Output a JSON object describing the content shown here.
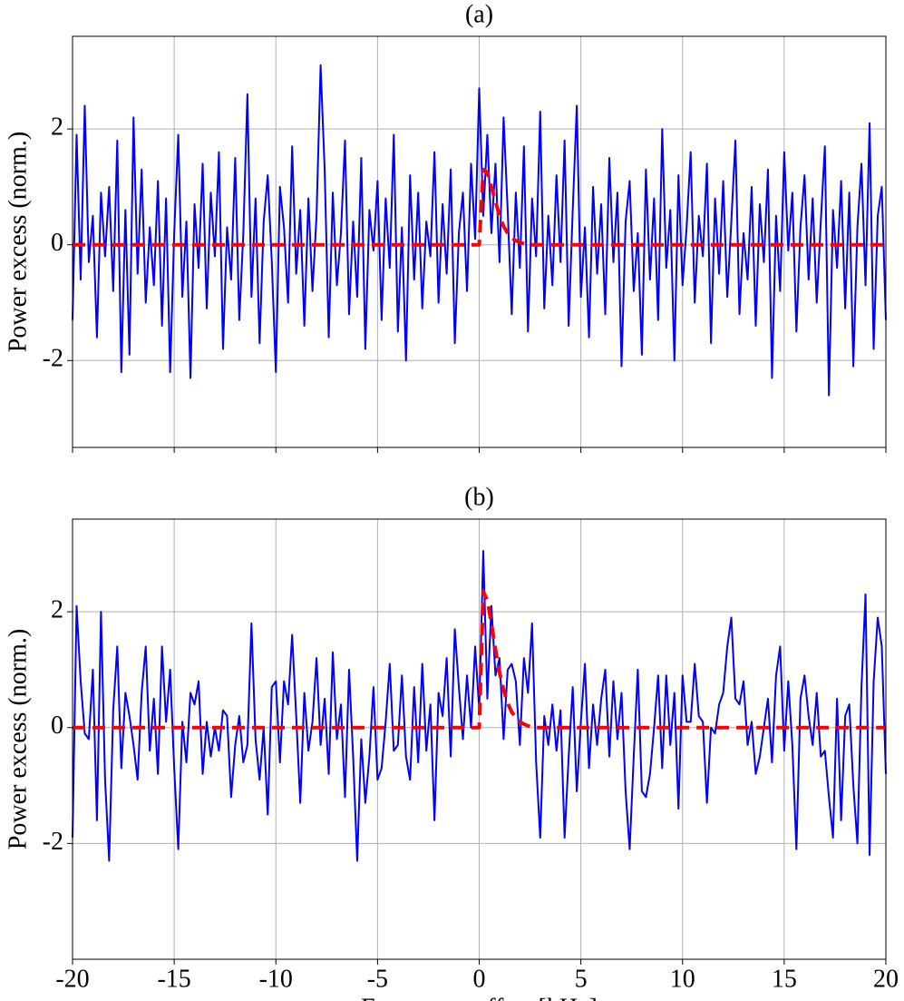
{
  "chart_data": [
    {
      "type": "line",
      "title": "(a)",
      "ylabel": "Power excess (norm.)",
      "show_xticklabels": false,
      "grid": true,
      "xlim": [
        -20,
        20
      ],
      "xticks": [
        -20,
        -15,
        -10,
        -5,
        0,
        5,
        10,
        15,
        20
      ],
      "ylim": [
        -3.5,
        3.6
      ],
      "yticks": [
        -2,
        0,
        2
      ],
      "x": [
        -20,
        -19.8,
        -19.6,
        -19.4,
        -19.2,
        -19,
        -18.8,
        -18.6,
        -18.4,
        -18.2,
        -18,
        -17.8,
        -17.6,
        -17.4,
        -17.2,
        -17,
        -16.8,
        -16.6,
        -16.4,
        -16.2,
        -16,
        -15.8,
        -15.6,
        -15.4,
        -15.2,
        -15,
        -14.8,
        -14.6,
        -14.4,
        -14.2,
        -14,
        -13.8,
        -13.6,
        -13.4,
        -13.2,
        -13,
        -12.8,
        -12.6,
        -12.4,
        -12.2,
        -12,
        -11.8,
        -11.6,
        -11.4,
        -11.2,
        -11,
        -10.8,
        -10.6,
        -10.4,
        -10.2,
        -10,
        -9.8,
        -9.6,
        -9.4,
        -9.2,
        -9,
        -8.8,
        -8.6,
        -8.4,
        -8.2,
        -8,
        -7.8,
        -7.6,
        -7.4,
        -7.2,
        -7,
        -6.8,
        -6.6,
        -6.4,
        -6.2,
        -6,
        -5.8,
        -5.6,
        -5.4,
        -5.2,
        -5,
        -4.8,
        -4.6,
        -4.4,
        -4.2,
        -4,
        -3.8,
        -3.6,
        -3.4,
        -3.2,
        -3,
        -2.8,
        -2.6,
        -2.4,
        -2.2,
        -2,
        -1.8,
        -1.6,
        -1.4,
        -1.2,
        -1,
        -0.8,
        -0.6,
        -0.4,
        -0.2,
        0,
        0.2,
        0.4,
        0.6,
        0.8,
        1,
        1.2,
        1.4,
        1.6,
        1.8,
        2,
        2.2,
        2.4,
        2.6,
        2.8,
        3,
        3.2,
        3.4,
        3.6,
        3.8,
        4,
        4.2,
        4.4,
        4.6,
        4.8,
        5,
        5.2,
        5.4,
        5.6,
        5.8,
        6,
        6.2,
        6.4,
        6.6,
        6.8,
        7,
        7.2,
        7.4,
        7.6,
        7.8,
        8,
        8.2,
        8.4,
        8.6,
        8.8,
        9,
        9.2,
        9.4,
        9.6,
        9.8,
        10,
        10.2,
        10.4,
        10.6,
        10.8,
        11,
        11.2,
        11.4,
        11.6,
        11.8,
        12,
        12.2,
        12.4,
        12.6,
        12.8,
        13,
        13.2,
        13.4,
        13.6,
        13.8,
        14,
        14.2,
        14.4,
        14.6,
        14.8,
        15,
        15.2,
        15.4,
        15.6,
        15.8,
        16,
        16.2,
        16.4,
        16.6,
        16.8,
        17,
        17.2,
        17.4,
        17.6,
        17.8,
        18,
        18.2,
        18.4,
        18.6,
        18.8,
        19,
        19.2,
        19.4,
        19.6,
        19.8,
        20
      ],
      "series": [
        {
          "color": "#0000ff",
          "dash": false,
          "values": [
            -1.3,
            1.9,
            -0.6,
            2.4,
            -0.3,
            0.5,
            -1.6,
            0.9,
            -0.2,
            1.0,
            -0.8,
            1.8,
            -2.2,
            0.6,
            -1.9,
            2.2,
            -0.5,
            1.3,
            -1.0,
            0.3,
            -0.7,
            1.1,
            -1.4,
            0.8,
            -2.2,
            0.2,
            1.9,
            -0.9,
            0.4,
            -2.3,
            0.7,
            -0.4,
            1.4,
            -1.1,
            0.9,
            -0.2,
            1.6,
            -1.8,
            0.3,
            -0.6,
            1.5,
            -1.3,
            0.2,
            2.6,
            -0.9,
            0.8,
            -1.7,
            0.4,
            1.2,
            -0.3,
            -2.2,
            1.0,
            0.3,
            -1.0,
            1.7,
            -0.5,
            0.6,
            -1.4,
            0.8,
            -0.8,
            0.5,
            3.1,
            1.3,
            -1.6,
            0.9,
            -0.7,
            0.2,
            1.8,
            -1.2,
            0.4,
            -0.9,
            1.5,
            -1.8,
            0.6,
            -0.1,
            1.1,
            -1.3,
            0.8,
            -0.4,
            1.9,
            -1.5,
            0.3,
            -2.0,
            1.2,
            -0.6,
            0.9,
            -1.1,
            0.4,
            -0.2,
            1.6,
            -1.0,
            0.7,
            -0.5,
            1.3,
            -1.7,
            0.2,
            0.9,
            -0.8,
            1.4,
            0.1,
            2.7,
            0.5,
            1.9,
            0.2,
            1.4,
            -0.3,
            2.2,
            0.6,
            -1.2,
            0.9,
            -0.4,
            1.7,
            -1.5,
            0.8,
            -0.2,
            2.3,
            -1.1,
            0.5,
            -0.7,
            1.2,
            -0.3,
            1.8,
            -1.4,
            0.6,
            2.4,
            -0.9,
            0.3,
            -1.6,
            1.0,
            -0.5,
            0.7,
            -1.2,
            1.5,
            -0.3,
            0.9,
            -2.1,
            0.4,
            1.1,
            -0.8,
            0.2,
            -1.9,
            1.3,
            -0.6,
            0.8,
            -1.3,
            2.0,
            -0.4,
            0.6,
            -2.0,
            1.2,
            -0.7,
            0.3,
            1.6,
            -1.0,
            0.5,
            -0.2,
            1.4,
            -1.7,
            0.8,
            -0.5,
            1.1,
            -0.9,
            0.4,
            1.8,
            -1.2,
            0.2,
            -0.6,
            1.0,
            -1.4,
            0.7,
            -0.3,
            1.3,
            -2.3,
            0.5,
            -0.8,
            1.6,
            -0.1,
            0.9,
            -1.5,
            0.3,
            1.2,
            -0.6,
            0.8,
            -1.0,
            0.4,
            1.7,
            -2.6,
            0.6,
            -0.4,
            1.1,
            -1.1,
            0.9,
            -2.1,
            0.3,
            1.4,
            -0.7,
            2.1,
            -1.8,
            0.5,
            1.0,
            -1.3
          ]
        },
        {
          "color": "#ff0000",
          "dash": true,
          "x": [
            -20,
            0,
            0.2,
            0.4,
            0.6,
            0.8,
            1,
            1.2,
            1.4,
            1.6,
            1.8,
            2,
            2.2,
            2.4,
            2.6,
            20
          ],
          "values": [
            0,
            0,
            1.3,
            1.25,
            1.0,
            0.75,
            0.5,
            0.32,
            0.2,
            0.12,
            0.07,
            0.04,
            0.02,
            0.01,
            0,
            0
          ]
        }
      ]
    },
    {
      "type": "line",
      "title": "(b)",
      "ylabel": "Power excess (norm.)",
      "xlabel": "Frequency offset [kHz]",
      "show_xticklabels": true,
      "grid": true,
      "xlim": [
        -20,
        20
      ],
      "xticks": [
        -20,
        -15,
        -10,
        -5,
        0,
        5,
        10,
        15,
        20
      ],
      "ylim": [
        -4,
        3.6
      ],
      "yticks": [
        -2,
        0,
        2
      ],
      "x": [
        -20,
        -19.8,
        -19.6,
        -19.4,
        -19.2,
        -19,
        -18.8,
        -18.6,
        -18.4,
        -18.2,
        -18,
        -17.8,
        -17.6,
        -17.4,
        -17.2,
        -17,
        -16.8,
        -16.6,
        -16.4,
        -16.2,
        -16,
        -15.8,
        -15.6,
        -15.4,
        -15.2,
        -15,
        -14.8,
        -14.6,
        -14.4,
        -14.2,
        -14,
        -13.8,
        -13.6,
        -13.4,
        -13.2,
        -13,
        -12.8,
        -12.6,
        -12.4,
        -12.2,
        -12,
        -11.8,
        -11.6,
        -11.4,
        -11.2,
        -11,
        -10.8,
        -10.6,
        -10.4,
        -10.2,
        -10,
        -9.8,
        -9.6,
        -9.4,
        -9.2,
        -9,
        -8.8,
        -8.6,
        -8.4,
        -8.2,
        -8,
        -7.8,
        -7.6,
        -7.4,
        -7.2,
        -7,
        -6.8,
        -6.6,
        -6.4,
        -6.2,
        -6,
        -5.8,
        -5.6,
        -5.4,
        -5.2,
        -5,
        -4.8,
        -4.6,
        -4.4,
        -4.2,
        -4,
        -3.8,
        -3.6,
        -3.4,
        -3.2,
        -3,
        -2.8,
        -2.6,
        -2.4,
        -2.2,
        -2,
        -1.8,
        -1.6,
        -1.4,
        -1.2,
        -1,
        -0.8,
        -0.6,
        -0.4,
        -0.2,
        0,
        0.2,
        0.4,
        0.6,
        0.8,
        1,
        1.2,
        1.4,
        1.6,
        1.8,
        2,
        2.2,
        2.4,
        2.6,
        2.8,
        3,
        3.2,
        3.4,
        3.6,
        3.8,
        4,
        4.2,
        4.4,
        4.6,
        4.8,
        5,
        5.2,
        5.4,
        5.6,
        5.8,
        6,
        6.2,
        6.4,
        6.6,
        6.8,
        7,
        7.2,
        7.4,
        7.6,
        7.8,
        8,
        8.2,
        8.4,
        8.6,
        8.8,
        9,
        9.2,
        9.4,
        9.6,
        9.8,
        10,
        10.2,
        10.4,
        10.6,
        10.8,
        11,
        11.2,
        11.4,
        11.6,
        11.8,
        12,
        12.2,
        12.4,
        12.6,
        12.8,
        13,
        13.2,
        13.4,
        13.6,
        13.8,
        14,
        14.2,
        14.4,
        14.6,
        14.8,
        15,
        15.2,
        15.4,
        15.6,
        15.8,
        16,
        16.2,
        16.4,
        16.6,
        16.8,
        17,
        17.2,
        17.4,
        17.6,
        17.8,
        18,
        18.2,
        18.4,
        18.6,
        18.8,
        19,
        19.2,
        19.4,
        19.6,
        19.8,
        20
      ],
      "series": [
        {
          "color": "#0000ff",
          "dash": false,
          "values": [
            -1.9,
            2.1,
            0.8,
            -0.1,
            -0.2,
            1.0,
            -1.6,
            2.0,
            -0.9,
            -2.3,
            0.3,
            1.4,
            -0.7,
            0.6,
            0.2,
            -0.3,
            -0.9,
            0.6,
            1.4,
            -0.4,
            0.5,
            -0.8,
            1.4,
            0.1,
            1.0,
            -0.7,
            -2.1,
            0.1,
            -0.6,
            0.6,
            0.4,
            0.8,
            -0.8,
            0.1,
            -0.5,
            0.0,
            -0.4,
            0.3,
            0.2,
            -1.2,
            -0.3,
            0.2,
            -0.6,
            -0.3,
            1.8,
            -0.2,
            -0.9,
            0.0,
            -1.5,
            0.7,
            0.8,
            -0.6,
            0.8,
            0.4,
            1.6,
            0.2,
            -1.3,
            0.6,
            -0.4,
            0.1,
            1.2,
            -0.3,
            0.5,
            -0.8,
            1.3,
            -0.2,
            0.4,
            -1.2,
            1.0,
            -0.5,
            -2.3,
            -0.2,
            -1.3,
            -0.5,
            0.7,
            -0.9,
            -0.7,
            0.1,
            1.1,
            -0.4,
            -0.3,
            0.9,
            -0.5,
            -0.9,
            0.7,
            -0.6,
            1.1,
            -0.4,
            0.4,
            -1.6,
            0.6,
            0.2,
            1.2,
            -0.5,
            1.7,
            0.7,
            -0.2,
            0.9,
            0.0,
            1.4,
            0.3,
            3.05,
            0.5,
            2.1,
            0.9,
            1.2,
            -0.2,
            1.0,
            1.1,
            0.8,
            -0.3,
            1.2,
            0.6,
            1.8,
            -0.6,
            -1.9,
            0.2,
            -0.3,
            0.4,
            -0.4,
            0.3,
            -1.9,
            -0.5,
            0.7,
            -1.1,
            0.1,
            1.1,
            -0.7,
            0.4,
            -0.3,
            0.5,
            1.0,
            -0.5,
            0.8,
            -0.2,
            0.6,
            -1.1,
            -2.1,
            -0.5,
            1.0,
            -1.1,
            -1.2,
            -0.8,
            0.0,
            0.9,
            -0.7,
            0.9,
            -0.3,
            0.6,
            -1.4,
            0.9,
            0.1,
            0.1,
            1.1,
            0.2,
            0.1,
            -1.3,
            0.0,
            -0.1,
            0.4,
            0.6,
            1.4,
            1.9,
            0.5,
            0.4,
            0.8,
            -0.3,
            0.1,
            -0.8,
            -0.5,
            0.0,
            0.5,
            -0.6,
            0.9,
            1.4,
            -0.4,
            0.8,
            -0.3,
            -2.1,
            0.5,
            0.9,
            0.2,
            -0.3,
            0.6,
            -0.5,
            -0.4,
            -1.2,
            -1.9,
            0.5,
            -1.6,
            0.2,
            0.4,
            -1.0,
            -2.0,
            0.7,
            2.3,
            -2.2,
            0.8,
            1.9,
            1.4,
            -0.8
          ]
        },
        {
          "color": "#ff0000",
          "dash": true,
          "x": [
            -20,
            0,
            0.2,
            0.4,
            0.6,
            0.8,
            1,
            1.2,
            1.4,
            1.6,
            1.8,
            2,
            2.2,
            2.4,
            2.6,
            20
          ],
          "values": [
            0,
            0,
            2.35,
            2.2,
            1.8,
            1.35,
            0.95,
            0.65,
            0.42,
            0.27,
            0.17,
            0.1,
            0.06,
            0.03,
            0,
            0
          ]
        }
      ]
    }
  ]
}
